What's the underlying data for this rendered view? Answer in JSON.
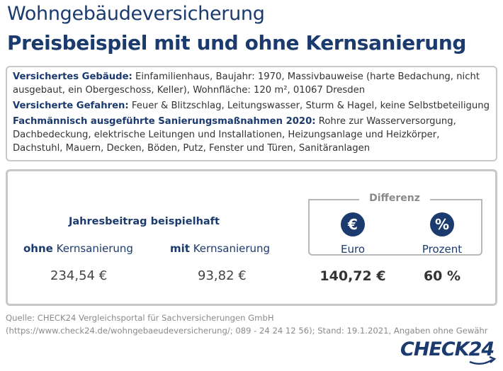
{
  "header": {
    "title": "Wohngebäudeversicherung",
    "subtitle": "Preisbeispiel mit und ohne Kernsanierung"
  },
  "info": {
    "building_label": "Versichertes Gebäude:",
    "building_text": "Einfamilienhaus, Baujahr: 1970, Massivbauweise (harte Bedachung, nicht ausgebaut, ein Obergeschoss, Keller), Wohnfläche: 120 m², 01067 Dresden",
    "risks_label": "Versicherte Gefahren:",
    "risks_text": "Feuer & Blitzschlag, Leitungswasser, Sturm & Hagel, keine Selbstbeteiligung",
    "measures_label": "Fachmännisch ausgeführte Sanierungsmaßnahmen 2020:",
    "measures_text": "Rohre zur Wasserversorgung, Dachbedeckung, elektrische Leitungen und Installationen, Heizungsanlage und Heizkörper, Dachstuhl, Mauern, Decken, Böden, Putz, Fenster und Türen, Sanitäranlagen"
  },
  "price": {
    "heading": "Jahresbeitrag beispielhaft",
    "ohne_bold": "ohne",
    "ohne_rest": " Kernsanierung",
    "mit_bold": "mit",
    "mit_rest": " Kernsanierung",
    "ohne_value": "234,54 €",
    "mit_value": "93,82 €"
  },
  "difference": {
    "title": "Differenz",
    "euro_symbol": "€",
    "percent_symbol": "%",
    "euro_label": "Euro",
    "percent_label": "Prozent",
    "euro_value": "140,72 €",
    "percent_value": "60 %"
  },
  "footer": {
    "source": "Quelle: CHECK24 Vergleichsportal für Sachversicherungen GmbH (https://www.check24.de/wohngebaeudeversicherung/; 089 - 24 24 12 56); Stand: 19.1.2021, Angaben ohne Gewähr",
    "logo": "CHECK24"
  },
  "colors": {
    "brand": "#1b3a6e",
    "border": "#c8c8c8",
    "muted": "#8a8a8a"
  }
}
